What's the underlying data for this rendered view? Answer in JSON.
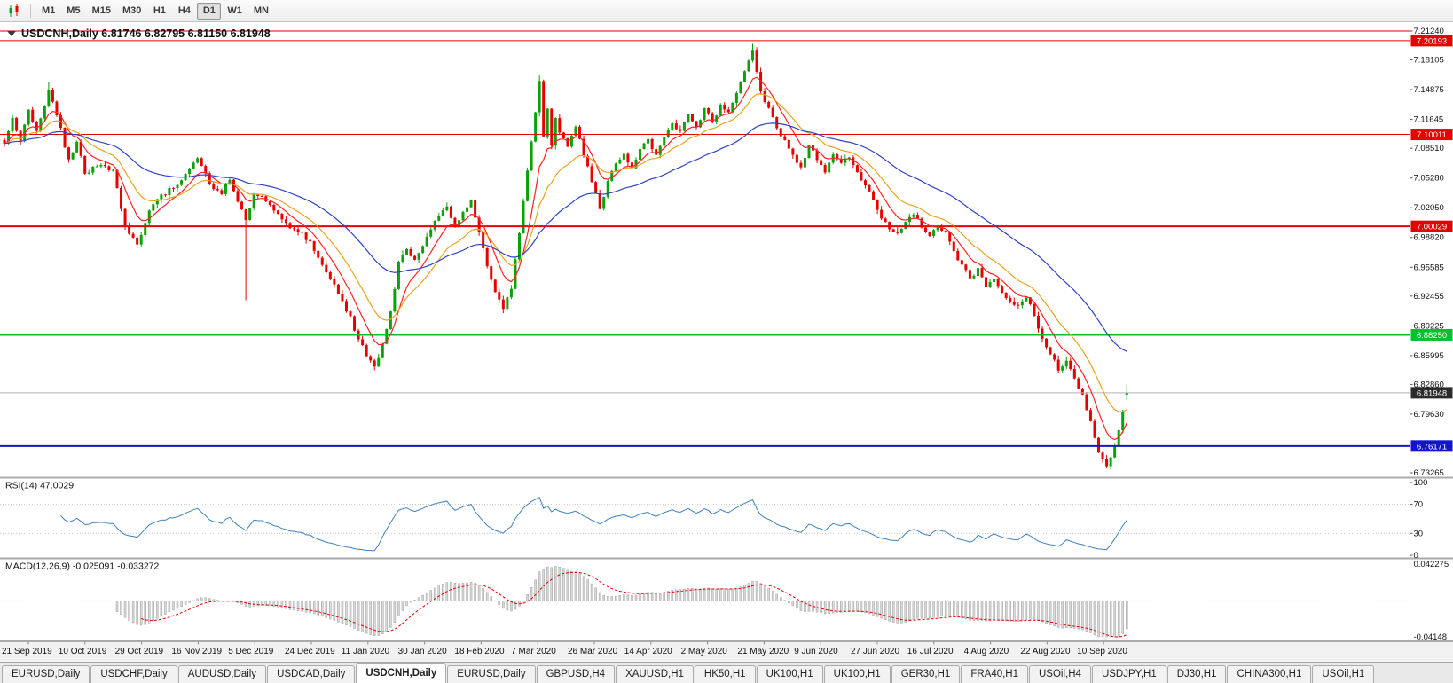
{
  "toolbar": {
    "timeframes": [
      "M1",
      "M5",
      "M15",
      "M30",
      "H1",
      "H4",
      "D1",
      "W1",
      "MN"
    ],
    "active_timeframe": "D1"
  },
  "quote": {
    "symbol_label": "USDCNH,Daily",
    "open": "6.81746",
    "high": "6.82795",
    "low": "6.81150",
    "close": "6.81948"
  },
  "price_axis": {
    "ticks": [
      "7.21240",
      "7.18105",
      "7.14875",
      "7.11645",
      "7.08510",
      "7.05280",
      "7.02050",
      "6.98820",
      "6.95585",
      "6.92455",
      "6.89225",
      "6.85995",
      "6.82860",
      "6.79630",
      "6.73265"
    ],
    "range": {
      "max": 7.2124,
      "min": 6.73265
    }
  },
  "levels": [
    {
      "price": 7.2124,
      "color": "#d40000",
      "width": 1,
      "badge": null
    },
    {
      "price": 7.20193,
      "color": "#e60000",
      "width": 1,
      "badge": "7.20193"
    },
    {
      "price": 7.10011,
      "color": "#e60000",
      "width": 1,
      "badge": "7.10011"
    },
    {
      "price": 7.00029,
      "color": "#e60000",
      "width": 2,
      "badge": "7.00029"
    },
    {
      "price": 6.8825,
      "color": "#00c030",
      "width": 2,
      "badge": "6.88250"
    },
    {
      "price": 6.76171,
      "color": "#1414cc",
      "width": 2,
      "badge": "6.76171"
    }
  ],
  "current_price": {
    "value": 6.81948,
    "badge": "6.81948",
    "badge_color": "#2b2b2b",
    "line_color": "#b4b4b4"
  },
  "date_axis": [
    "21 Sep 2019",
    "10 Oct 2019",
    "29 Oct 2019",
    "16 Nov 2019",
    "5 Dec 2019",
    "24 Dec 2019",
    "11 Jan 2020",
    "30 Jan 2020",
    "18 Feb 2020",
    "7 Mar 2020",
    "26 Mar 2020",
    "14 Apr 2020",
    "2 May 2020",
    "21 May 2020",
    "9 Jun 2020",
    "27 Jun 2020",
    "16 Jul 2020",
    "4 Aug 2020",
    "22 Aug 2020",
    "10 Sep 2020"
  ],
  "chart_data": {
    "type": "candlestick",
    "symbol": "USDCNH",
    "timeframe": "Daily",
    "candle_count": 280,
    "ohlc_last": [
      6.81746,
      6.82795,
      6.8115,
      6.81948
    ],
    "ylim": [
      6.73265,
      7.2124
    ],
    "up_color": "#0aa10a",
    "down_color": "#e80000",
    "seed": 42,
    "noise": 0.003,
    "close_anchors": [
      [
        0,
        7.09
      ],
      [
        2,
        7.118
      ],
      [
        4,
        7.094
      ],
      [
        6,
        7.126
      ],
      [
        8,
        7.104
      ],
      [
        11,
        7.148
      ],
      [
        13,
        7.122
      ],
      [
        16,
        7.072
      ],
      [
        18,
        7.092
      ],
      [
        20,
        7.058
      ],
      [
        24,
        7.068
      ],
      [
        27,
        7.062
      ],
      [
        30,
        7.0
      ],
      [
        33,
        6.98
      ],
      [
        36,
        7.018
      ],
      [
        39,
        7.034
      ],
      [
        42,
        7.042
      ],
      [
        45,
        7.058
      ],
      [
        48,
        7.074
      ],
      [
        51,
        7.046
      ],
      [
        54,
        7.036
      ],
      [
        56,
        7.05
      ],
      [
        58,
        7.028
      ],
      [
        60,
        7.008
      ],
      [
        62,
        7.034
      ],
      [
        65,
        7.028
      ],
      [
        68,
        7.014
      ],
      [
        70,
        7.004
      ],
      [
        73,
        6.994
      ],
      [
        76,
        6.984
      ],
      [
        79,
        6.958
      ],
      [
        82,
        6.938
      ],
      [
        84,
        6.918
      ],
      [
        86,
        6.902
      ],
      [
        88,
        6.878
      ],
      [
        90,
        6.86
      ],
      [
        92,
        6.848
      ],
      [
        94,
        6.872
      ],
      [
        96,
        6.908
      ],
      [
        98,
        6.962
      ],
      [
        100,
        6.976
      ],
      [
        102,
        6.964
      ],
      [
        104,
        6.98
      ],
      [
        106,
        6.996
      ],
      [
        108,
        7.012
      ],
      [
        110,
        7.022
      ],
      [
        112,
        7.0
      ],
      [
        114,
        7.016
      ],
      [
        116,
        7.03
      ],
      [
        118,
        6.994
      ],
      [
        120,
        6.958
      ],
      [
        122,
        6.928
      ],
      [
        124,
        6.91
      ],
      [
        126,
        6.932
      ],
      [
        128,
        6.992
      ],
      [
        130,
        7.062
      ],
      [
        132,
        7.124
      ],
      [
        133,
        7.158
      ],
      [
        134,
        7.098
      ],
      [
        135,
        7.128
      ],
      [
        136,
        7.088
      ],
      [
        137,
        7.118
      ],
      [
        138,
        7.102
      ],
      [
        140,
        7.088
      ],
      [
        142,
        7.108
      ],
      [
        144,
        7.078
      ],
      [
        146,
        7.048
      ],
      [
        148,
        7.02
      ],
      [
        150,
        7.05
      ],
      [
        152,
        7.068
      ],
      [
        154,
        7.078
      ],
      [
        156,
        7.064
      ],
      [
        158,
        7.084
      ],
      [
        160,
        7.094
      ],
      [
        162,
        7.078
      ],
      [
        164,
        7.098
      ],
      [
        166,
        7.112
      ],
      [
        168,
        7.104
      ],
      [
        170,
        7.122
      ],
      [
        172,
        7.108
      ],
      [
        174,
        7.128
      ],
      [
        176,
        7.114
      ],
      [
        178,
        7.132
      ],
      [
        180,
        7.124
      ],
      [
        182,
        7.144
      ],
      [
        184,
        7.168
      ],
      [
        186,
        7.192
      ],
      [
        188,
        7.148
      ],
      [
        190,
        7.128
      ],
      [
        192,
        7.108
      ],
      [
        194,
        7.094
      ],
      [
        196,
        7.078
      ],
      [
        198,
        7.064
      ],
      [
        200,
        7.088
      ],
      [
        202,
        7.072
      ],
      [
        204,
        7.058
      ],
      [
        206,
        7.078
      ],
      [
        208,
        7.068
      ],
      [
        210,
        7.074
      ],
      [
        212,
        7.058
      ],
      [
        214,
        7.044
      ],
      [
        216,
        7.028
      ],
      [
        218,
        7.008
      ],
      [
        220,
        6.998
      ],
      [
        222,
        6.994
      ],
      [
        224,
        7.004
      ],
      [
        226,
        7.014
      ],
      [
        228,
        6.999
      ],
      [
        230,
        6.989
      ],
      [
        232,
        6.999
      ],
      [
        234,
        6.993
      ],
      [
        236,
        6.974
      ],
      [
        238,
        6.958
      ],
      [
        240,
        6.944
      ],
      [
        242,
        6.954
      ],
      [
        244,
        6.934
      ],
      [
        246,
        6.944
      ],
      [
        248,
        6.929
      ],
      [
        250,
        6.919
      ],
      [
        252,
        6.914
      ],
      [
        254,
        6.924
      ],
      [
        256,
        6.904
      ],
      [
        258,
        6.879
      ],
      [
        260,
        6.861
      ],
      [
        262,
        6.844
      ],
      [
        264,
        6.854
      ],
      [
        266,
        6.834
      ],
      [
        268,
        6.818
      ],
      [
        270,
        6.788
      ],
      [
        272,
        6.754
      ],
      [
        274,
        6.741
      ],
      [
        276,
        6.762
      ],
      [
        277,
        6.778
      ],
      [
        278,
        6.8
      ],
      [
        279,
        6.81948
      ]
    ],
    "wick_overrides": [
      [
        11,
        7.157,
        null
      ],
      [
        60,
        null,
        6.92
      ],
      [
        92,
        null,
        6.844
      ],
      [
        124,
        null,
        6.906
      ],
      [
        133,
        7.165,
        null
      ],
      [
        186,
        7.1985,
        null
      ],
      [
        274,
        null,
        6.7375
      ]
    ],
    "moving_averages": [
      {
        "period": 8,
        "color": "#ff2222"
      },
      {
        "period": 17,
        "color": "#e8a41c"
      },
      {
        "period": 45,
        "color": "#2e43c8"
      }
    ]
  },
  "rsi_panel": {
    "label": "RSI(14)",
    "value": "47.0029",
    "period": 14,
    "line_color": "#3e80c0",
    "levels": [
      70,
      30
    ],
    "axis_ticks": [
      "100",
      "70",
      "30",
      "0"
    ],
    "axis_values": [
      100,
      70,
      30,
      0
    ],
    "range": [
      0,
      100
    ]
  },
  "macd_panel": {
    "label": "MACD(12,26,9)",
    "value": "-0.025091 -0.033272",
    "fast": 12,
    "slow": 26,
    "signal": 9,
    "histogram_fill": "#d8d8d8",
    "histogram_stroke": "#a0a0a0",
    "signal_color": "#e60000",
    "axis_ticks": [
      "0.042275",
      "-0.04148"
    ],
    "range": [
      -0.04148,
      0.042275
    ]
  },
  "tabs": {
    "items": [
      "EURUSD,Daily",
      "USDCHF,Daily",
      "AUDUSD,Daily",
      "USDCAD,Daily",
      "USDCNH,Daily",
      "EURUSD,Daily",
      "GBPUSD,H4",
      "XAUUSD,H1",
      "HK50,H1",
      "UK100,H1",
      "UK100,H1",
      "GER30,H1",
      "FRA40,H1",
      "USOil,H4",
      "USDJPY,H1",
      "DJ30,H1",
      "CHINA300,H1",
      "USOil,H1"
    ],
    "active_index": 4
  }
}
